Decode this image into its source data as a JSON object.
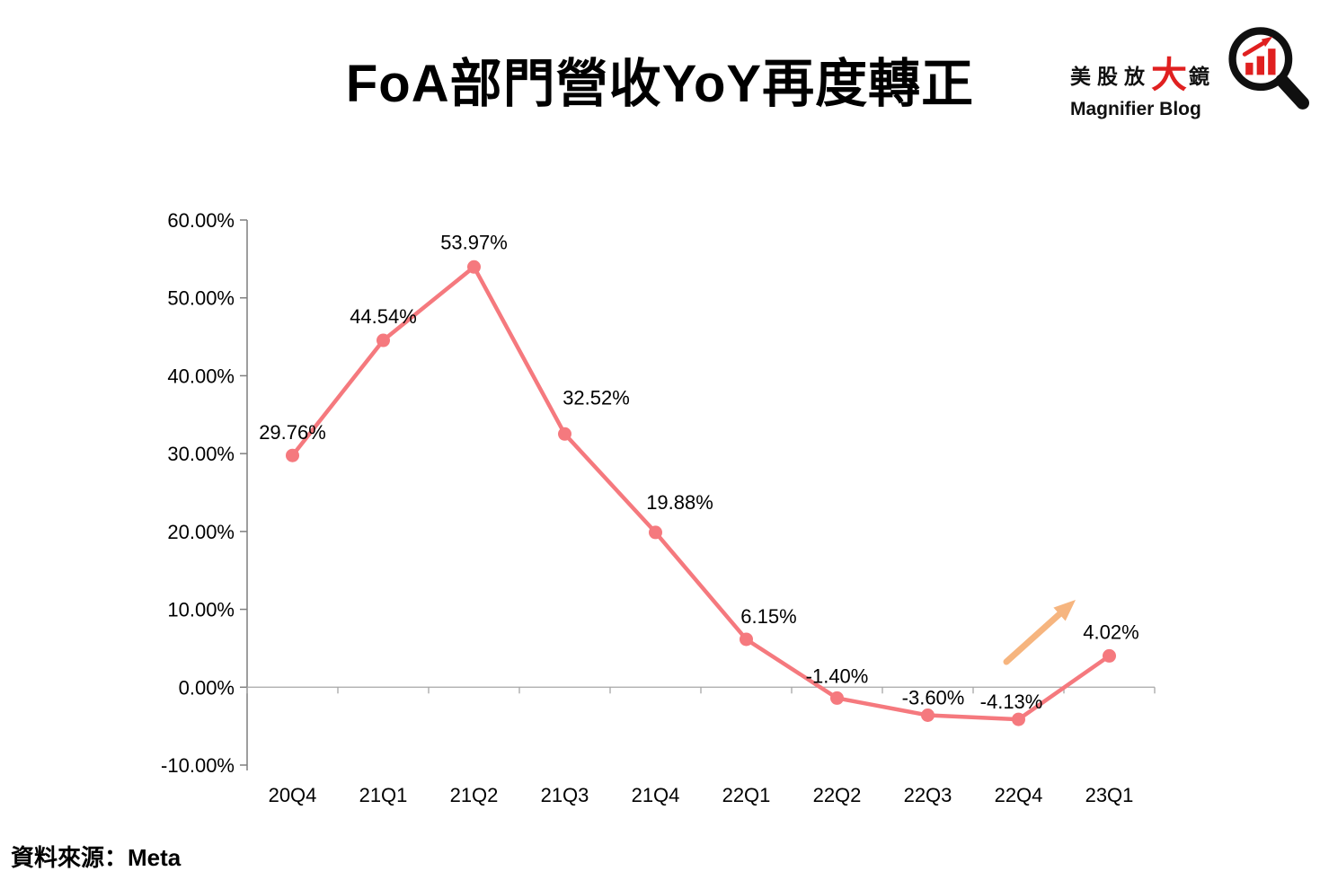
{
  "title": "FoA部門營收YoY再度轉正",
  "logo": {
    "brand_prefix": "美股放",
    "brand_big": "大",
    "brand_suffix": "鏡",
    "subtitle": "Magnifier Blog",
    "accent_color": "#e02020"
  },
  "source_note": "資料來源：Meta",
  "chart_data": {
    "type": "line",
    "title": "FoA部門營收YoY再度轉正",
    "categories": [
      "20Q4",
      "21Q1",
      "21Q2",
      "21Q3",
      "21Q4",
      "22Q1",
      "22Q2",
      "22Q3",
      "22Q4",
      "23Q1"
    ],
    "values": [
      29.76,
      44.54,
      53.97,
      32.52,
      19.88,
      6.15,
      -1.4,
      -3.6,
      -4.13,
      4.02
    ],
    "labels": [
      "29.76%",
      "44.54%",
      "53.97%",
      "32.52%",
      "19.88%",
      "6.15%",
      "-1.40%",
      "-3.60%",
      "-4.13%",
      "4.02%"
    ],
    "xlabel": "",
    "ylabel": "",
    "ylim": [
      -10,
      60
    ],
    "ytick_step": 10,
    "ytick_labels": [
      "60.00%",
      "50.00%",
      "40.00%",
      "30.00%",
      "20.00%",
      "10.00%",
      "0.00%",
      "-10.00%"
    ],
    "grid": false,
    "legend": "none",
    "line_color": "#f5797e",
    "annotation": {
      "type": "arrow",
      "color": "#f6b57f",
      "note": "upturn-arrow"
    }
  }
}
